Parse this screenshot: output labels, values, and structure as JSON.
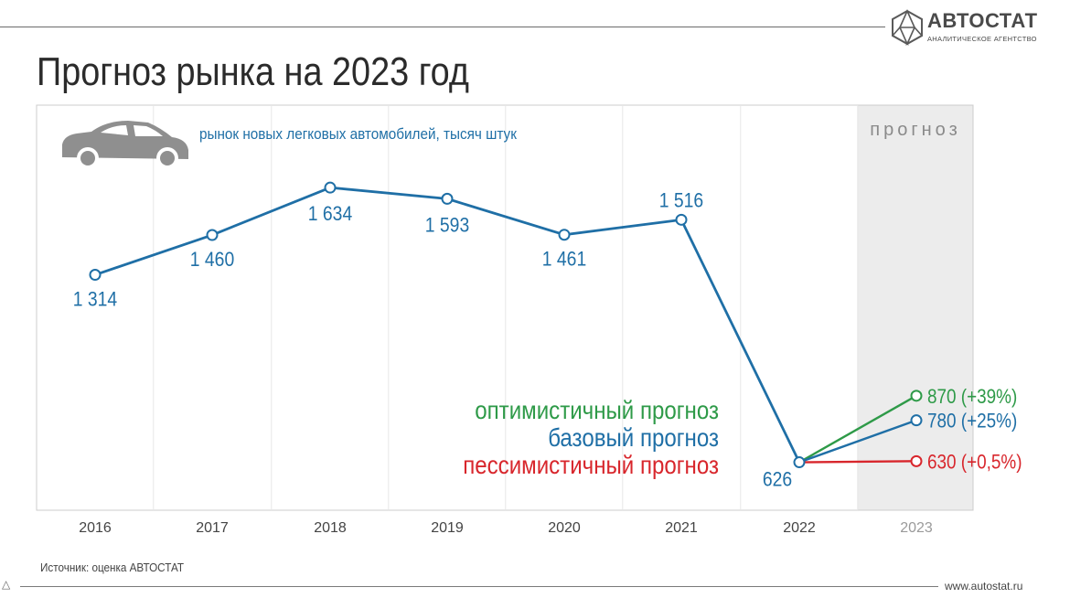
{
  "header": {
    "title": "Прогноз рынка на 2023 год",
    "logo_name": "АВТОСТАТ",
    "logo_subtitle": "АНАЛИТИЧЕСКОЕ АГЕНТСТВО",
    "logo_icon": "hexagon-logo-icon"
  },
  "footer": {
    "source": "Источник: оценка АВТОСТАТ",
    "site": "www.autostat.ru"
  },
  "chart_data": {
    "type": "line",
    "subtitle": "рынок новых легковых автомобилей, тысяч штук",
    "forecast_label": "прогноз",
    "categories": [
      "2016",
      "2017",
      "2018",
      "2019",
      "2020",
      "2021",
      "2022",
      "2023"
    ],
    "ylim": [
      450,
      1750
    ],
    "grid": "vertical",
    "icon": "car-icon",
    "series": [
      {
        "values": [
          1314,
          1460,
          1634,
          1593,
          1461,
          1516,
          626,
          null
        ],
        "labels": [
          "1 314",
          "1 460",
          "1 634",
          "1 593",
          "1 461",
          "1 516",
          "626",
          ""
        ],
        "color": "#1f6fa6"
      }
    ],
    "forecasts": [
      {
        "name": "оптимистичный прогноз",
        "value": 870,
        "label": "870 (+39%)",
        "color": "#2e9a48"
      },
      {
        "name": "базовый прогноз",
        "value": 780,
        "label": "780 (+25%)",
        "color": "#1f6fa6"
      },
      {
        "name": "пессимистичный прогноз",
        "value": 630,
        "label": "630 (+0,5%)",
        "color": "#d8262c"
      }
    ],
    "colors": {
      "forecast_band": "#ececec",
      "grid": "#e6e6e6",
      "axis": "#cccccc",
      "tick": "#444444",
      "forecast_tick": "#9a9a9a"
    }
  }
}
